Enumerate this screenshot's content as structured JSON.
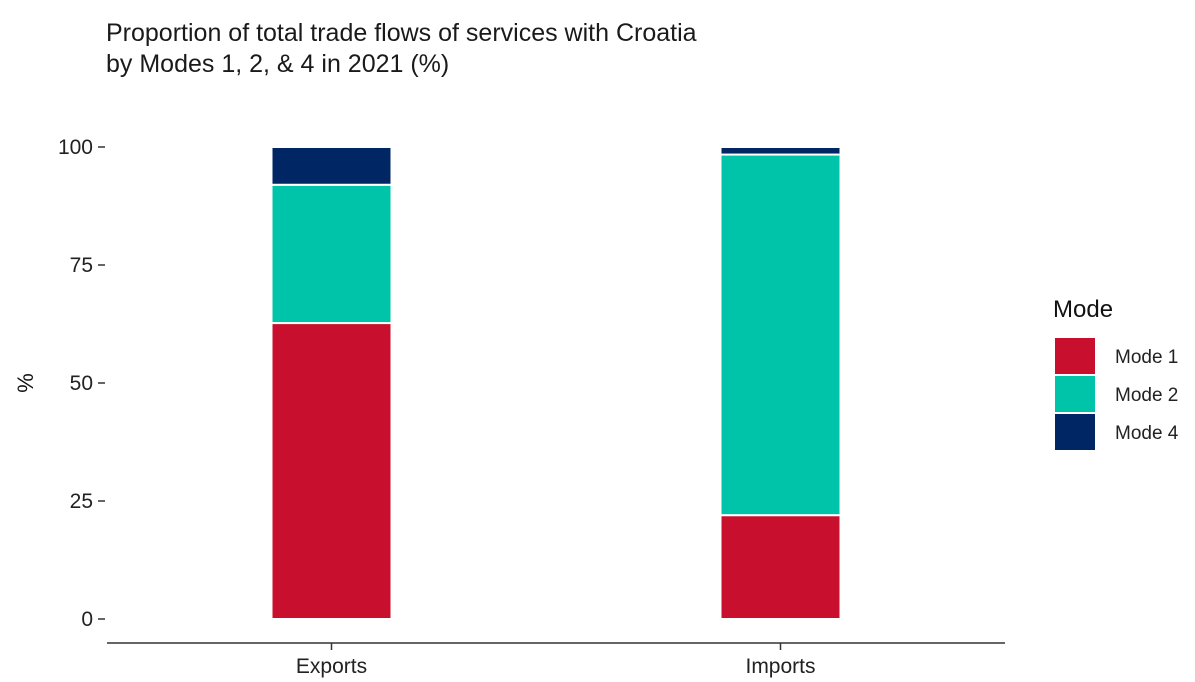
{
  "chart_data": {
    "type": "bar",
    "stacked": true,
    "title_lines": [
      "Proportion of total trade flows of services with Croatia",
      "by Modes 1, 2, & 4 in 2021 (%)"
    ],
    "xlabel": "",
    "ylabel": "%",
    "ylim": [
      0,
      100
    ],
    "yticks": [
      0,
      25,
      50,
      75,
      100
    ],
    "categories": [
      "Exports",
      "Imports"
    ],
    "series": [
      {
        "name": "Mode 1",
        "color": "#C8102E",
        "values": [
          62.7,
          22.0
        ]
      },
      {
        "name": "Mode 2",
        "color": "#00C4AA",
        "values": [
          29.3,
          76.4
        ]
      },
      {
        "name": "Mode 4",
        "color": "#002664",
        "values": [
          8.0,
          1.6
        ]
      }
    ],
    "legend": {
      "title": "Mode",
      "position": "right"
    },
    "grid": false
  }
}
